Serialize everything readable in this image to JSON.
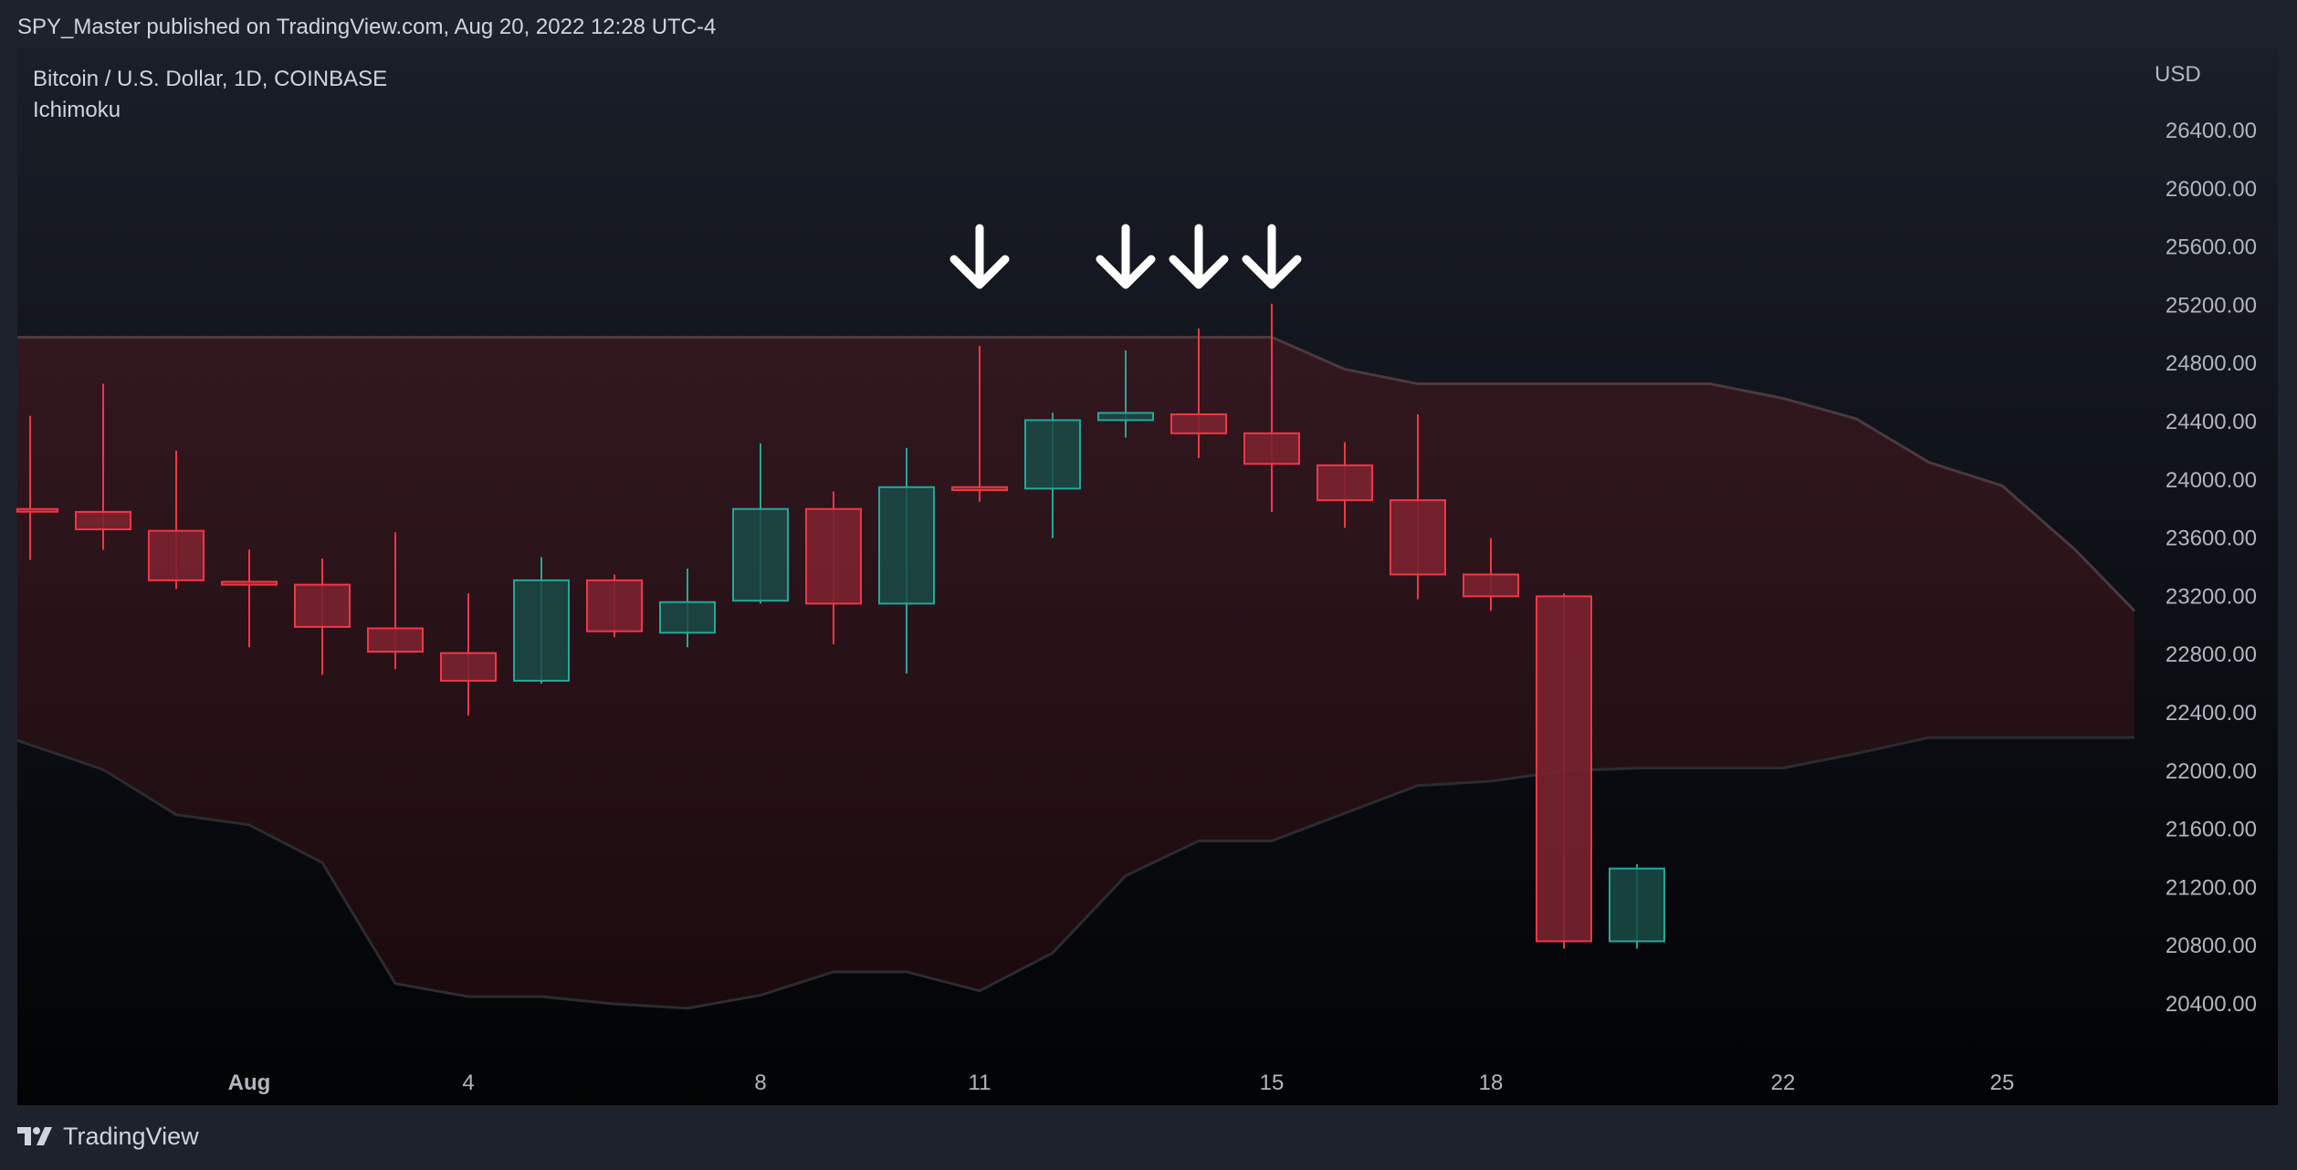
{
  "caption": "SPY_Master published on TradingView.com, Aug 20, 2022 12:28 UTC-4",
  "footer": {
    "brand": "TradingView"
  },
  "colors": {
    "up": "#26a69a",
    "down": "#f23645",
    "cloud": "#6b1a1f",
    "cloud_edge": "#4a3a3e",
    "arrow": "#ffffff"
  },
  "chart_data": {
    "type": "candlestick",
    "title": "Bitcoin / U.S. Dollar, 1D, COINBASE",
    "indicator": "Ichimoku",
    "ylabel": "USD",
    "ylim": [
      20000,
      26800
    ],
    "yticks": [
      "26400.00",
      "26000.00",
      "25600.00",
      "25200.00",
      "24800.00",
      "24400.00",
      "24000.00",
      "23600.00",
      "23200.00",
      "22800.00",
      "22400.00",
      "22000.00",
      "21600.00",
      "21200.00",
      "20800.00",
      "20400.00"
    ],
    "xticks": [
      {
        "label": "Aug",
        "date": "Aug 1",
        "bold": true
      },
      {
        "label": "4",
        "date": "Aug 4"
      },
      {
        "label": "8",
        "date": "Aug 8"
      },
      {
        "label": "11",
        "date": "Aug 11"
      },
      {
        "label": "15",
        "date": "Aug 15"
      },
      {
        "label": "18",
        "date": "Aug 18"
      },
      {
        "label": "22",
        "date": "Aug 22"
      },
      {
        "label": "25",
        "date": "Aug 25"
      }
    ],
    "candles": [
      {
        "date": "Jul 29",
        "open": 23800,
        "high": 24440,
        "low": 23450,
        "close": 23790
      },
      {
        "date": "Jul 30",
        "open": 23780,
        "high": 24660,
        "low": 23520,
        "close": 23660
      },
      {
        "date": "Jul 31",
        "open": 23650,
        "high": 24200,
        "low": 23250,
        "close": 23310
      },
      {
        "date": "Aug 1",
        "open": 23300,
        "high": 23520,
        "low": 22850,
        "close": 23280
      },
      {
        "date": "Aug 2",
        "open": 23280,
        "high": 23460,
        "low": 22660,
        "close": 22990
      },
      {
        "date": "Aug 3",
        "open": 22980,
        "high": 23640,
        "low": 22700,
        "close": 22820
      },
      {
        "date": "Aug 4",
        "open": 22810,
        "high": 23220,
        "low": 22380,
        "close": 22620
      },
      {
        "date": "Aug 5",
        "open": 22620,
        "high": 23470,
        "low": 22600,
        "close": 23310
      },
      {
        "date": "Aug 6",
        "open": 23310,
        "high": 23350,
        "low": 22920,
        "close": 22960
      },
      {
        "date": "Aug 7",
        "open": 22950,
        "high": 23390,
        "low": 22850,
        "close": 23160
      },
      {
        "date": "Aug 8",
        "open": 23170,
        "high": 24250,
        "low": 23150,
        "close": 23800
      },
      {
        "date": "Aug 9",
        "open": 23800,
        "high": 23920,
        "low": 22870,
        "close": 23150
      },
      {
        "date": "Aug 10",
        "open": 23150,
        "high": 24220,
        "low": 22670,
        "close": 23950
      },
      {
        "date": "Aug 11",
        "open": 23950,
        "high": 24920,
        "low": 23850,
        "close": 23930
      },
      {
        "date": "Aug 12",
        "open": 23940,
        "high": 24460,
        "low": 23600,
        "close": 24410
      },
      {
        "date": "Aug 13",
        "open": 24410,
        "high": 24890,
        "low": 24290,
        "close": 24460
      },
      {
        "date": "Aug 14",
        "open": 24450,
        "high": 25040,
        "low": 24150,
        "close": 24320
      },
      {
        "date": "Aug 15",
        "open": 24320,
        "high": 25210,
        "low": 23780,
        "close": 24110
      },
      {
        "date": "Aug 16",
        "open": 24100,
        "high": 24260,
        "low": 23670,
        "close": 23860
      },
      {
        "date": "Aug 17",
        "open": 23860,
        "high": 24450,
        "low": 23180,
        "close": 23350
      },
      {
        "date": "Aug 18",
        "open": 23350,
        "high": 23600,
        "low": 23100,
        "close": 23200
      },
      {
        "date": "Aug 19",
        "open": 23200,
        "high": 23220,
        "low": 20780,
        "close": 20830
      },
      {
        "date": "Aug 20",
        "open": 20830,
        "high": 21360,
        "low": 20780,
        "close": 21330
      }
    ],
    "cloud_upper": [
      {
        "date": "Jul 29",
        "value": 24980
      },
      {
        "date": "Aug 15",
        "value": 24980
      },
      {
        "date": "Aug 16",
        "value": 24760
      },
      {
        "date": "Aug 17",
        "value": 24660
      },
      {
        "date": "Aug 21",
        "value": 24660
      },
      {
        "date": "Aug 22",
        "value": 24560
      },
      {
        "date": "Aug 23",
        "value": 24420
      },
      {
        "date": "Aug 24",
        "value": 24120
      },
      {
        "date": "Aug 25",
        "value": 23960
      },
      {
        "date": "Aug 26",
        "value": 23520
      },
      {
        "date": "Aug 27",
        "value": 23100
      }
    ],
    "cloud_lower": [
      {
        "date": "Jul 29",
        "value": 22210
      },
      {
        "date": "Jul 30",
        "value": 22010
      },
      {
        "date": "Jul 31",
        "value": 21700
      },
      {
        "date": "Aug 1",
        "value": 21630
      },
      {
        "date": "Aug 2",
        "value": 21370
      },
      {
        "date": "Aug 3",
        "value": 20540
      },
      {
        "date": "Aug 4",
        "value": 20450
      },
      {
        "date": "Aug 5",
        "value": 20450
      },
      {
        "date": "Aug 6",
        "value": 20400
      },
      {
        "date": "Aug 7",
        "value": 20370
      },
      {
        "date": "Aug 8",
        "value": 20460
      },
      {
        "date": "Aug 9",
        "value": 20620
      },
      {
        "date": "Aug 10",
        "value": 20620
      },
      {
        "date": "Aug 11",
        "value": 20490
      },
      {
        "date": "Aug 12",
        "value": 20750
      },
      {
        "date": "Aug 13",
        "value": 21280
      },
      {
        "date": "Aug 14",
        "value": 21520
      },
      {
        "date": "Aug 15",
        "value": 21520
      },
      {
        "date": "Aug 16",
        "value": 21710
      },
      {
        "date": "Aug 17",
        "value": 21900
      },
      {
        "date": "Aug 18",
        "value": 21930
      },
      {
        "date": "Aug 19",
        "value": 22000
      },
      {
        "date": "Aug 20",
        "value": 22020
      },
      {
        "date": "Aug 22",
        "value": 22020
      },
      {
        "date": "Aug 23",
        "value": 22120
      },
      {
        "date": "Aug 24",
        "value": 22230
      },
      {
        "date": "Aug 27",
        "value": 22230
      }
    ],
    "annotations": [
      {
        "type": "down-arrow",
        "date": "Aug 11"
      },
      {
        "type": "down-arrow",
        "date": "Aug 13"
      },
      {
        "type": "down-arrow",
        "date": "Aug 14"
      },
      {
        "type": "down-arrow",
        "date": "Aug 15"
      }
    ]
  }
}
